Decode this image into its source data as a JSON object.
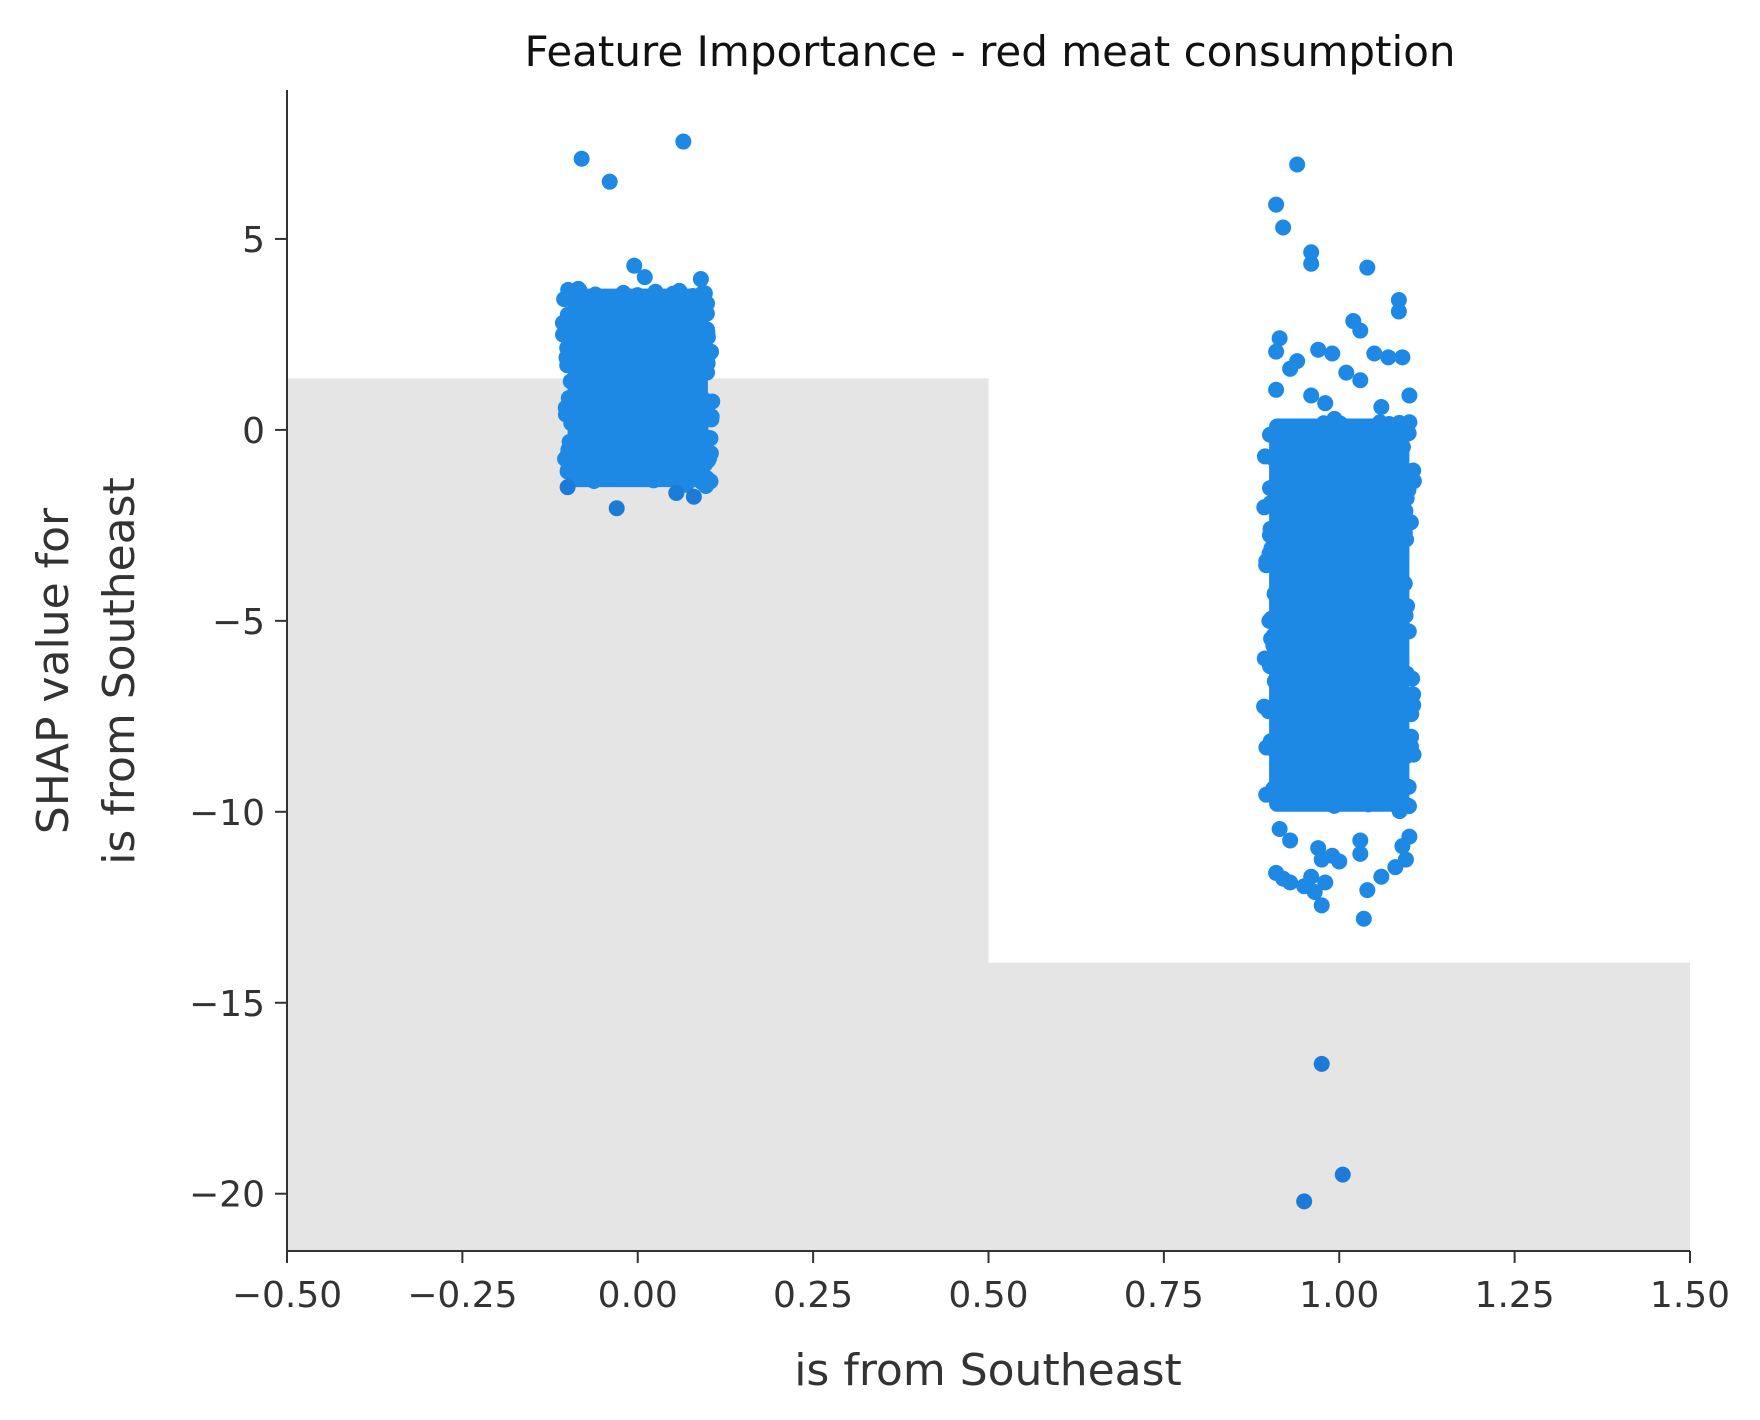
{
  "chart_data": {
    "type": "scatter",
    "title": "Feature Importance - red meat consumption",
    "xlabel": "is from Southeast",
    "ylabel": [
      "SHAP value for",
      "is from Southeast"
    ],
    "xlim": [
      -0.5,
      1.5
    ],
    "ylim": [
      -21.5,
      8.9
    ],
    "x_ticks": [
      -0.5,
      -0.25,
      0.0,
      0.25,
      0.5,
      0.75,
      1.0,
      1.25,
      1.5
    ],
    "x_tick_labels": [
      "−0.50",
      "−0.25",
      "0.00",
      "0.25",
      "0.50",
      "0.75",
      "1.00",
      "1.25",
      "1.50"
    ],
    "y_ticks": [
      5,
      0,
      -5,
      -10,
      -15,
      -20
    ],
    "y_tick_labels": [
      "5",
      "0",
      "−5",
      "−10",
      "−15",
      "−20"
    ],
    "grid": false,
    "point_color": "#1E88E5",
    "background_histogram": {
      "color": "#E5E5E5",
      "bars": [
        {
          "x0": -0.5,
          "x1": 0.5,
          "top": 1.35
        },
        {
          "x0": 0.5,
          "x1": 1.5,
          "top": -13.95
        }
      ]
    },
    "dense_clusters": [
      {
        "x_center": 0.0,
        "x_jitter": 0.1,
        "y_min": -1.5,
        "y_max": 3.7
      },
      {
        "x_center": 1.0,
        "x_jitter": 0.1,
        "y_min": -10.0,
        "y_max": 0.3
      }
    ],
    "outlier_points": [
      {
        "x": -0.08,
        "y": 7.1
      },
      {
        "x": 0.065,
        "y": 7.55
      },
      {
        "x": -0.04,
        "y": 6.5
      },
      {
        "x": -0.005,
        "y": 4.3
      },
      {
        "x": 0.01,
        "y": 4.0
      },
      {
        "x": 0.09,
        "y": 3.95
      },
      {
        "x": -0.1,
        "y": -1.5
      },
      {
        "x": -0.03,
        "y": -2.05
      },
      {
        "x": 0.08,
        "y": -1.75
      },
      {
        "x": 0.055,
        "y": -1.65
      },
      {
        "x": 0.94,
        "y": 6.95
      },
      {
        "x": 0.91,
        "y": 5.9
      },
      {
        "x": 0.92,
        "y": 5.3
      },
      {
        "x": 0.96,
        "y": 4.65
      },
      {
        "x": 0.96,
        "y": 4.35
      },
      {
        "x": 1.04,
        "y": 4.25
      },
      {
        "x": 1.085,
        "y": 3.4
      },
      {
        "x": 1.085,
        "y": 3.1
      },
      {
        "x": 1.02,
        "y": 2.85
      },
      {
        "x": 1.03,
        "y": 2.6
      },
      {
        "x": 0.915,
        "y": 2.4
      },
      {
        "x": 0.91,
        "y": 2.05
      },
      {
        "x": 0.97,
        "y": 2.1
      },
      {
        "x": 0.99,
        "y": 2.0
      },
      {
        "x": 1.05,
        "y": 2.0
      },
      {
        "x": 1.07,
        "y": 1.9
      },
      {
        "x": 1.09,
        "y": 1.9
      },
      {
        "x": 0.94,
        "y": 1.8
      },
      {
        "x": 0.93,
        "y": 1.6
      },
      {
        "x": 1.01,
        "y": 1.5
      },
      {
        "x": 1.03,
        "y": 1.3
      },
      {
        "x": 0.91,
        "y": 1.05
      },
      {
        "x": 0.96,
        "y": 0.9
      },
      {
        "x": 1.1,
        "y": 0.9
      },
      {
        "x": 1.1,
        "y": 0.2
      },
      {
        "x": 0.98,
        "y": 0.7
      },
      {
        "x": 1.06,
        "y": 0.6
      },
      {
        "x": 0.915,
        "y": -10.45
      },
      {
        "x": 0.93,
        "y": -10.75
      },
      {
        "x": 0.97,
        "y": -10.95
      },
      {
        "x": 1.09,
        "y": -10.9
      },
      {
        "x": 1.1,
        "y": -10.65
      },
      {
        "x": 1.03,
        "y": -10.75
      },
      {
        "x": 0.975,
        "y": -11.25
      },
      {
        "x": 0.99,
        "y": -11.15
      },
      {
        "x": 1.0,
        "y": -11.3
      },
      {
        "x": 1.03,
        "y": -11.1
      },
      {
        "x": 1.095,
        "y": -11.25
      },
      {
        "x": 1.08,
        "y": -11.45
      },
      {
        "x": 0.91,
        "y": -11.6
      },
      {
        "x": 0.92,
        "y": -11.75
      },
      {
        "x": 0.93,
        "y": -11.85
      },
      {
        "x": 0.96,
        "y": -11.7
      },
      {
        "x": 0.95,
        "y": -11.95
      },
      {
        "x": 0.965,
        "y": -12.1
      },
      {
        "x": 0.98,
        "y": -11.85
      },
      {
        "x": 1.06,
        "y": -11.7
      },
      {
        "x": 1.04,
        "y": -12.05
      },
      {
        "x": 0.975,
        "y": -12.45
      },
      {
        "x": 1.035,
        "y": -12.8
      },
      {
        "x": 0.975,
        "y": -16.6
      },
      {
        "x": 1.005,
        "y": -19.5
      },
      {
        "x": 0.95,
        "y": -20.2
      }
    ]
  }
}
